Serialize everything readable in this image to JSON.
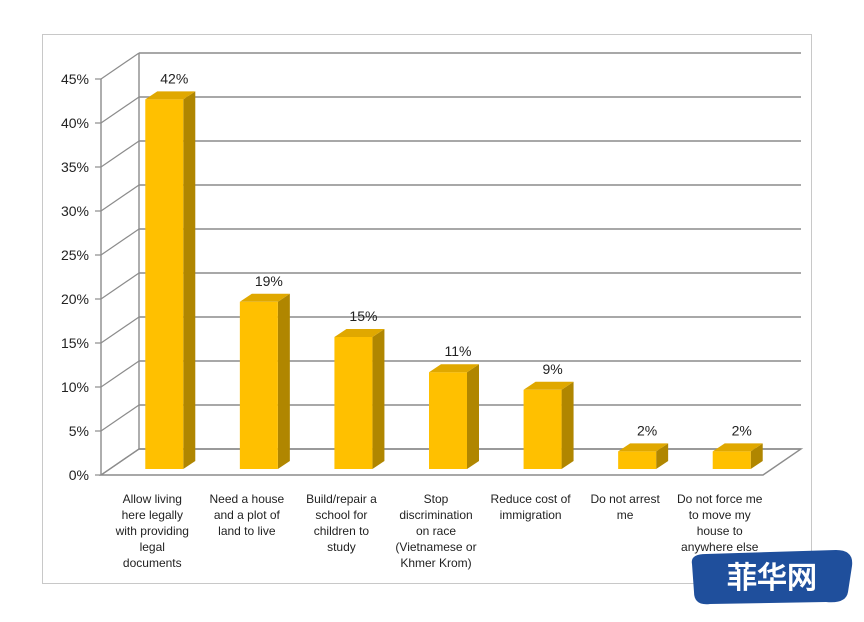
{
  "chart_data": {
    "type": "bar",
    "categories": [
      [
        "Allow living",
        "here legally",
        "with providing",
        "legal",
        "documents"
      ],
      [
        "Need a house",
        "and a plot of",
        "land to live"
      ],
      [
        "Build/repair a",
        "school for",
        "children to",
        "study"
      ],
      [
        "Stop",
        "discrimination",
        "on race",
        "(Vietnamese or",
        "Khmer Krom)"
      ],
      [
        "Reduce cost of",
        "immigration"
      ],
      [
        "Do not arrest",
        "me"
      ],
      [
        "Do not force me",
        "to move my",
        "house to",
        "anywhere else"
      ]
    ],
    "values": [
      42,
      19,
      15,
      11,
      9,
      2,
      2
    ],
    "data_labels": [
      "42%",
      "19%",
      "15%",
      "11%",
      "9%",
      "2%",
      "2%"
    ],
    "yticks": [
      "0%",
      "5%",
      "10%",
      "15%",
      "20%",
      "25%",
      "30%",
      "35%",
      "40%",
      "45%"
    ],
    "ylim": [
      0,
      45
    ],
    "title": "",
    "xlabel": "",
    "ylabel": "",
    "grid": true,
    "legend": "none",
    "colors": {
      "bar_front": "#FFC000",
      "bar_top": "#E0A800",
      "bar_side": "#B08600",
      "grid": "#8c8c8c"
    }
  },
  "watermark": {
    "text": "菲华网",
    "color": "#1f4f9c"
  }
}
